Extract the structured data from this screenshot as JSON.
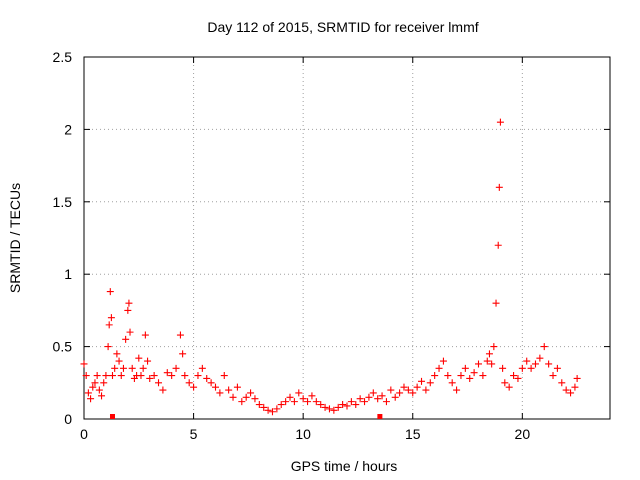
{
  "chart_data": {
    "type": "scatter",
    "title": "Day 112 of 2015, SRMTID for receiver lmmf",
    "xlabel": "GPS time / hours",
    "ylabel": "SRMTID / TECUs",
    "xlim": [
      0,
      24
    ],
    "ylim": [
      0,
      2.5
    ],
    "x_ticks": [
      0,
      5,
      10,
      15,
      20
    ],
    "x_tick_labels": [
      "0",
      "5",
      "10",
      "15",
      "20"
    ],
    "y_ticks": [
      0,
      0.5,
      1,
      1.5,
      2,
      2.5
    ],
    "y_tick_labels": [
      "0",
      "0.5",
      "1",
      "1.5",
      "2",
      "2.5"
    ],
    "grid": true,
    "marker": "plus",
    "series": [
      {
        "name": "SRMTID",
        "color": "#ff0000",
        "x": [
          0.0,
          0.1,
          0.2,
          0.3,
          0.4,
          0.5,
          0.6,
          0.7,
          0.8,
          0.9,
          1.0,
          1.1,
          1.15,
          1.2,
          1.25,
          1.3,
          1.4,
          1.5,
          1.6,
          1.7,
          1.8,
          1.9,
          2.0,
          2.05,
          2.1,
          2.2,
          2.3,
          2.4,
          2.5,
          2.6,
          2.7,
          2.8,
          2.9,
          3.0,
          3.2,
          3.4,
          3.6,
          3.8,
          4.0,
          4.2,
          4.4,
          4.5,
          4.6,
          4.8,
          5.0,
          5.2,
          5.4,
          5.6,
          5.8,
          6.0,
          6.2,
          6.4,
          6.6,
          6.8,
          7.0,
          7.2,
          7.4,
          7.6,
          7.8,
          8.0,
          8.2,
          8.4,
          8.6,
          8.8,
          9.0,
          9.2,
          9.4,
          9.6,
          9.8,
          10.0,
          10.2,
          10.4,
          10.6,
          10.8,
          11.0,
          11.2,
          11.4,
          11.6,
          11.8,
          12.0,
          12.2,
          12.4,
          12.6,
          12.8,
          13.0,
          13.2,
          13.4,
          13.6,
          13.8,
          14.0,
          14.2,
          14.4,
          14.6,
          14.8,
          15.0,
          15.2,
          15.4,
          15.6,
          15.8,
          16.0,
          16.2,
          16.4,
          16.6,
          16.8,
          17.0,
          17.2,
          17.4,
          17.6,
          17.8,
          18.0,
          18.2,
          18.4,
          18.5,
          18.6,
          18.7,
          18.8,
          18.9,
          18.95,
          19.0,
          19.1,
          19.2,
          19.4,
          19.6,
          19.8,
          20.0,
          20.2,
          20.4,
          20.6,
          20.8,
          21.0,
          21.2,
          21.4,
          21.6,
          21.8,
          22.0,
          22.2,
          22.4,
          22.5
        ],
        "y": [
          0.38,
          0.3,
          0.18,
          0.14,
          0.22,
          0.25,
          0.3,
          0.2,
          0.16,
          0.25,
          0.3,
          0.5,
          0.65,
          0.88,
          0.7,
          0.3,
          0.35,
          0.45,
          0.4,
          0.3,
          0.35,
          0.55,
          0.75,
          0.8,
          0.6,
          0.35,
          0.28,
          0.3,
          0.42,
          0.3,
          0.35,
          0.58,
          0.4,
          0.28,
          0.3,
          0.25,
          0.2,
          0.32,
          0.3,
          0.35,
          0.58,
          0.45,
          0.3,
          0.25,
          0.22,
          0.3,
          0.35,
          0.28,
          0.25,
          0.22,
          0.18,
          0.3,
          0.2,
          0.15,
          0.22,
          0.12,
          0.15,
          0.18,
          0.14,
          0.1,
          0.08,
          0.06,
          0.05,
          0.07,
          0.1,
          0.12,
          0.15,
          0.12,
          0.18,
          0.14,
          0.12,
          0.16,
          0.12,
          0.1,
          0.08,
          0.07,
          0.06,
          0.08,
          0.1,
          0.09,
          0.12,
          0.1,
          0.14,
          0.12,
          0.15,
          0.18,
          0.14,
          0.16,
          0.12,
          0.2,
          0.15,
          0.18,
          0.22,
          0.2,
          0.18,
          0.22,
          0.26,
          0.2,
          0.25,
          0.3,
          0.35,
          0.4,
          0.3,
          0.25,
          0.2,
          0.3,
          0.35,
          0.28,
          0.32,
          0.38,
          0.3,
          0.4,
          0.45,
          0.38,
          0.5,
          0.8,
          1.2,
          1.6,
          2.05,
          0.35,
          0.25,
          0.22,
          0.3,
          0.28,
          0.35,
          0.4,
          0.35,
          0.38,
          0.42,
          0.5,
          0.38,
          0.3,
          0.35,
          0.25,
          0.2,
          0.18,
          0.22,
          0.28
        ]
      }
    ],
    "low_markers": [
      {
        "x": 1.3,
        "y": 0.0,
        "color": "#ff0000"
      },
      {
        "x": 13.5,
        "y": 0.0,
        "color": "#ff0000"
      }
    ]
  }
}
